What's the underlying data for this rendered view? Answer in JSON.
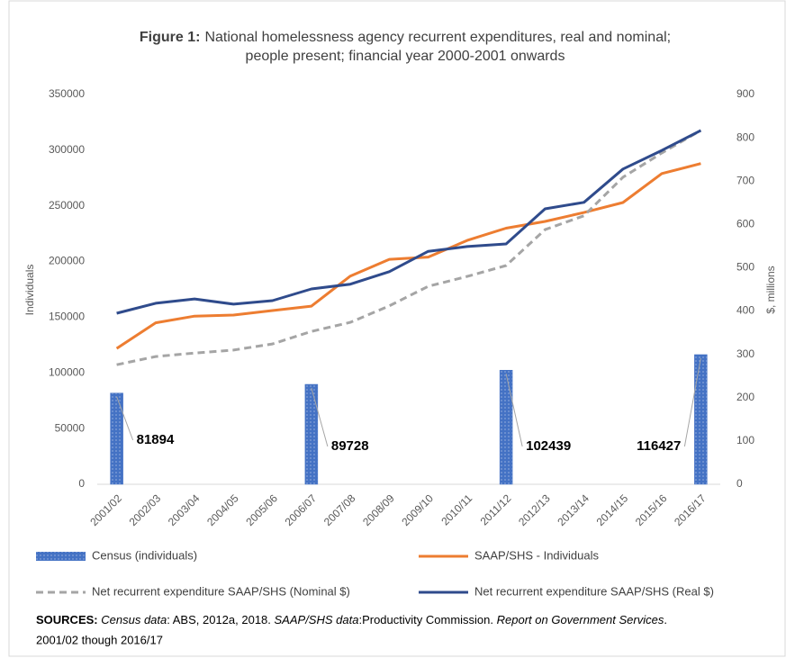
{
  "chart_data": {
    "type": "bar-line",
    "title_prefix": "Figure 1:",
    "title": [
      "National homelessness  agency recurrent expenditures, real and nominal;",
      "people present; financial year 2000-2001 onwards"
    ],
    "y_label": "Individuals",
    "y2_label": "$, millions",
    "categories": [
      "2001/02",
      "2002/03",
      "2003/04",
      "2004/05",
      "2005/06",
      "2006/07",
      "2007/08",
      "2008/09",
      "2009/10",
      "2010/11",
      "2011/12",
      "2012/13",
      "2013/14",
      "2014/15",
      "2015/16",
      "2016/17"
    ],
    "series": [
      {
        "name": "Census (individuals)",
        "type": "bar",
        "color": "#4472c4",
        "values": [
          81894,
          null,
          null,
          null,
          null,
          89728,
          null,
          null,
          null,
          null,
          102439,
          null,
          null,
          null,
          null,
          116427
        ]
      },
      {
        "name": "SAAP/SHS - Individuals",
        "type": "line",
        "color": "#ed7d31",
        "values": [
          122000,
          145000,
          151000,
          152000,
          156000,
          160000,
          187000,
          202000,
          204000,
          219000,
          230000,
          236000,
          244000,
          253000,
          279000,
          288000
        ]
      },
      {
        "name": "Net recurrent expenditure SAAP/SHS (Nominal $)",
        "type": "line",
        "dashed": true,
        "axis": "y2",
        "color": "#a5a5a5",
        "values": [
          276,
          295,
          303,
          310,
          324,
          353,
          374,
          412,
          457,
          480,
          505,
          588,
          620,
          709,
          765,
          817
        ]
      },
      {
        "name": "Net recurrent expenditure SAAP/SHS (Real $)",
        "type": "line",
        "axis": "y2",
        "color": "#2f4b8c",
        "values": [
          395,
          418,
          428,
          416,
          424,
          451,
          462,
          491,
          538,
          549,
          555,
          636,
          651,
          728,
          771,
          817
        ]
      }
    ],
    "ylim": [
      0,
      350000
    ],
    "yticks": [
      0,
      50000,
      100000,
      150000,
      200000,
      250000,
      300000,
      350000
    ],
    "y2lim": [
      0,
      900
    ],
    "y2ticks": [
      0,
      100,
      200,
      300,
      400,
      500,
      600,
      700,
      800,
      900
    ],
    "grid": false,
    "footnote": [
      {
        "text": "SOURCES:",
        "style": "bold"
      },
      {
        "text": " ",
        "style": "normal"
      },
      {
        "text": "Census data",
        "style": "italic"
      },
      {
        "text": ": ABS, 2012a, 2018. ",
        "style": "normal"
      },
      {
        "text": "SAAP/SHS data",
        "style": "italic"
      },
      {
        "text": ":Productivity Commission. ",
        "style": "normal"
      },
      {
        "text": "Report on Government Services",
        "style": "italic"
      },
      {
        "text": ".",
        "style": "normal"
      }
    ],
    "footnote_line2": "2001/02 though 2016/17"
  }
}
